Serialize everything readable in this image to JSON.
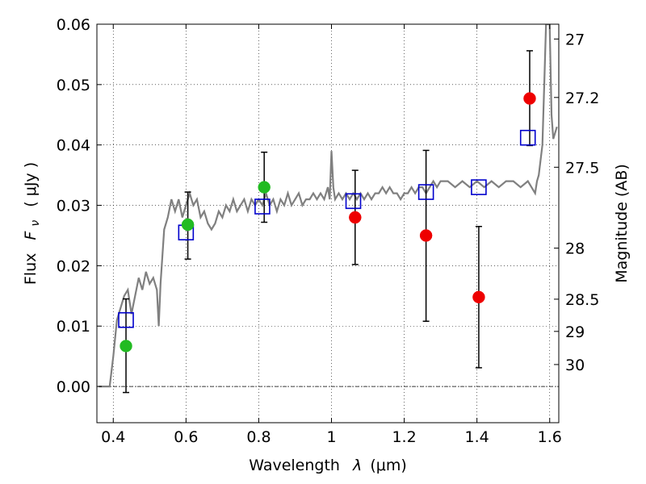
{
  "chart_data": {
    "type": "scatter",
    "xlabel": "Wavelength",
    "xlabel_symbol": "λ",
    "xlabel_unit": "(μm)",
    "ylabel": "Flux",
    "ylabel_symbol": "F",
    "ylabel_subscript": "ν",
    "ylabel_unit": "( μJy )",
    "y2label": "Magnitude (AB)",
    "xlim": [
      0.355,
      1.625
    ],
    "ylim": [
      -0.006,
      0.06
    ],
    "x_ticks": [
      0.4,
      0.6,
      0.8,
      1.0,
      1.2,
      1.4,
      1.6
    ],
    "x_tick_labels": [
      "0.4",
      "0.6",
      "0.8",
      "1",
      "1.2",
      "1.4",
      "1.6"
    ],
    "y_ticks": [
      0.0,
      0.01,
      0.02,
      0.03,
      0.04,
      0.05,
      0.06
    ],
    "y_tick_labels": [
      "0.00",
      "0.01",
      "0.02",
      "0.03",
      "0.04",
      "0.05",
      "0.06"
    ],
    "magnitude_ticks": [
      {
        "label": "27",
        "mag": 27.0
      },
      {
        "label": "27.2",
        "mag": 27.2
      },
      {
        "label": "27.5",
        "mag": 27.5
      },
      {
        "label": "28",
        "mag": 28.0
      },
      {
        "label": "28.5",
        "mag": 28.5
      },
      {
        "label": "29",
        "mag": 29.0
      },
      {
        "label": "30",
        "mag": 30.0
      }
    ],
    "grid": true,
    "legend": "none",
    "series": [
      {
        "marker": "line",
        "color": "#808080",
        "x": [
          0.36,
          0.39,
          0.4,
          0.41,
          0.42,
          0.43,
          0.44,
          0.45,
          0.46,
          0.47,
          0.48,
          0.49,
          0.5,
          0.51,
          0.52,
          0.525,
          0.53,
          0.54,
          0.55,
          0.56,
          0.57,
          0.58,
          0.59,
          0.6,
          0.61,
          0.62,
          0.63,
          0.64,
          0.65,
          0.66,
          0.67,
          0.68,
          0.69,
          0.7,
          0.71,
          0.72,
          0.73,
          0.74,
          0.75,
          0.76,
          0.77,
          0.78,
          0.79,
          0.8,
          0.81,
          0.82,
          0.83,
          0.84,
          0.85,
          0.86,
          0.87,
          0.88,
          0.89,
          0.9,
          0.91,
          0.92,
          0.93,
          0.94,
          0.95,
          0.96,
          0.97,
          0.98,
          0.99,
          0.995,
          1.0,
          1.005,
          1.01,
          1.02,
          1.03,
          1.04,
          1.05,
          1.06,
          1.07,
          1.08,
          1.09,
          1.1,
          1.11,
          1.12,
          1.13,
          1.14,
          1.15,
          1.16,
          1.17,
          1.18,
          1.19,
          1.2,
          1.21,
          1.22,
          1.23,
          1.24,
          1.25,
          1.26,
          1.27,
          1.28,
          1.29,
          1.3,
          1.32,
          1.34,
          1.36,
          1.38,
          1.4,
          1.42,
          1.44,
          1.46,
          1.48,
          1.5,
          1.52,
          1.54,
          1.55,
          1.56,
          1.565,
          1.57,
          1.58,
          1.585,
          1.59,
          1.6,
          1.605,
          1.61,
          1.62
        ],
        "y": [
          0.0,
          0.0,
          0.005,
          0.011,
          0.013,
          0.015,
          0.016,
          0.012,
          0.015,
          0.018,
          0.016,
          0.019,
          0.017,
          0.018,
          0.016,
          0.01,
          0.017,
          0.026,
          0.028,
          0.031,
          0.029,
          0.031,
          0.028,
          0.03,
          0.032,
          0.03,
          0.031,
          0.028,
          0.029,
          0.027,
          0.026,
          0.027,
          0.029,
          0.028,
          0.03,
          0.029,
          0.031,
          0.029,
          0.03,
          0.031,
          0.029,
          0.031,
          0.03,
          0.031,
          0.03,
          0.032,
          0.03,
          0.031,
          0.029,
          0.031,
          0.03,
          0.032,
          0.03,
          0.031,
          0.032,
          0.03,
          0.031,
          0.031,
          0.032,
          0.031,
          0.032,
          0.031,
          0.033,
          0.031,
          0.039,
          0.033,
          0.031,
          0.032,
          0.031,
          0.032,
          0.031,
          0.032,
          0.031,
          0.032,
          0.031,
          0.032,
          0.031,
          0.032,
          0.032,
          0.033,
          0.032,
          0.033,
          0.032,
          0.032,
          0.031,
          0.032,
          0.032,
          0.033,
          0.032,
          0.033,
          0.033,
          0.032,
          0.033,
          0.034,
          0.033,
          0.034,
          0.034,
          0.033,
          0.034,
          0.033,
          0.034,
          0.033,
          0.034,
          0.033,
          0.034,
          0.034,
          0.033,
          0.034,
          0.033,
          0.032,
          0.034,
          0.035,
          0.04,
          0.05,
          0.06,
          0.06,
          0.045,
          0.041,
          0.043
        ]
      },
      {
        "marker": "square",
        "color": "#0000cc",
        "x": [
          0.435,
          0.6,
          0.81,
          1.06,
          1.26,
          1.405,
          1.54
        ],
        "y": [
          0.011,
          0.0255,
          0.0298,
          0.0307,
          0.0322,
          0.033,
          0.0412
        ]
      },
      {
        "marker": "circle",
        "color": "#22bb22",
        "x": [
          0.435,
          0.605,
          0.815
        ],
        "y": [
          0.0067,
          0.0268,
          0.033
        ],
        "yerr_low": [
          0.0077,
          0.0057,
          0.0058
        ],
        "yerr_high": [
          0.0078,
          0.0054,
          0.0058
        ]
      },
      {
        "marker": "circle",
        "color": "#ee0000",
        "x": [
          1.065,
          1.26,
          1.405,
          1.545
        ],
        "y": [
          0.028,
          0.025,
          0.0148,
          0.0477
        ],
        "yerr_low": [
          0.0078,
          0.0142,
          0.0117,
          0.0078
        ],
        "yerr_high": [
          0.0078,
          0.0141,
          0.0117,
          0.0079
        ]
      }
    ]
  }
}
